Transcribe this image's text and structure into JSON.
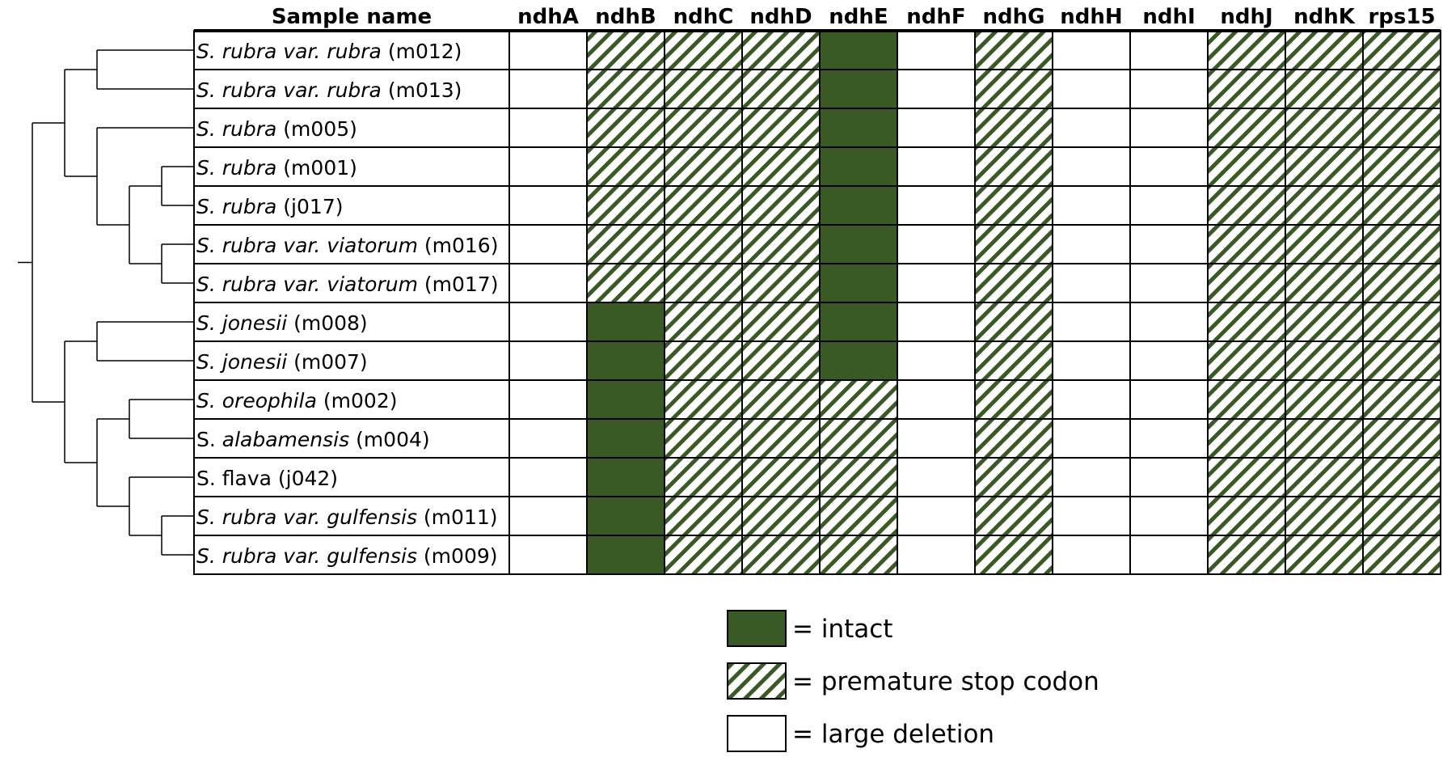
{
  "header": {
    "sample_col": "Sample name",
    "genes": [
      "ndhA",
      "ndhB",
      "ndhC",
      "ndhD",
      "ndhE",
      "ndhF",
      "ndhG",
      "ndhH",
      "ndhI",
      "ndhJ",
      "ndhK",
      "rps15"
    ]
  },
  "samples": [
    {
      "name": [
        {
          "t": "S. rubra var. rubra",
          "i": true
        },
        {
          "t": " (m012)",
          "i": false
        }
      ],
      "status": [
        "deletion",
        "stop",
        "stop",
        "stop",
        "intact",
        "deletion",
        "stop",
        "deletion",
        "deletion",
        "stop",
        "stop",
        "stop"
      ]
    },
    {
      "name": [
        {
          "t": "S. rubra var. rubra",
          "i": true
        },
        {
          "t": " (m013)",
          "i": false
        }
      ],
      "status": [
        "deletion",
        "stop",
        "stop",
        "stop",
        "intact",
        "deletion",
        "stop",
        "deletion",
        "deletion",
        "stop",
        "stop",
        "stop"
      ]
    },
    {
      "name": [
        {
          "t": "S. rubra",
          "i": true
        },
        {
          "t": " (m005)",
          "i": false
        }
      ],
      "status": [
        "deletion",
        "stop",
        "stop",
        "stop",
        "intact",
        "deletion",
        "stop",
        "deletion",
        "deletion",
        "stop",
        "stop",
        "stop"
      ]
    },
    {
      "name": [
        {
          "t": "S. rubra",
          "i": true
        },
        {
          "t": " (m001)",
          "i": false
        }
      ],
      "status": [
        "deletion",
        "stop",
        "stop",
        "stop",
        "intact",
        "deletion",
        "stop",
        "deletion",
        "deletion",
        "stop",
        "stop",
        "stop"
      ]
    },
    {
      "name": [
        {
          "t": "S. rubra",
          "i": true
        },
        {
          "t": " (j017)",
          "i": false
        }
      ],
      "status": [
        "deletion",
        "stop",
        "stop",
        "stop",
        "intact",
        "deletion",
        "stop",
        "deletion",
        "deletion",
        "stop",
        "stop",
        "stop"
      ]
    },
    {
      "name": [
        {
          "t": "S. rubra var. viatorum",
          "i": true
        },
        {
          "t": " (m016)",
          "i": false
        }
      ],
      "status": [
        "deletion",
        "stop",
        "stop",
        "stop",
        "intact",
        "deletion",
        "stop",
        "deletion",
        "deletion",
        "stop",
        "stop",
        "stop"
      ]
    },
    {
      "name": [
        {
          "t": "S. rubra var. viatorum",
          "i": true
        },
        {
          "t": " (m017)",
          "i": false
        }
      ],
      "status": [
        "deletion",
        "stop",
        "stop",
        "stop",
        "intact",
        "deletion",
        "stop",
        "deletion",
        "deletion",
        "stop",
        "stop",
        "stop"
      ]
    },
    {
      "name": [
        {
          "t": "S. jonesii",
          "i": true
        },
        {
          "t": " (m008)",
          "i": false
        }
      ],
      "status": [
        "deletion",
        "intact",
        "stop",
        "stop",
        "intact",
        "deletion",
        "stop",
        "deletion",
        "deletion",
        "stop",
        "stop",
        "stop"
      ]
    },
    {
      "name": [
        {
          "t": "S. jonesii",
          "i": true
        },
        {
          "t": " (m007)",
          "i": false
        }
      ],
      "status": [
        "deletion",
        "intact",
        "stop",
        "stop",
        "intact",
        "deletion",
        "stop",
        "deletion",
        "deletion",
        "stop",
        "stop",
        "stop"
      ]
    },
    {
      "name": [
        {
          "t": "S. oreophila",
          "i": true
        },
        {
          "t": " (m002)",
          "i": false
        }
      ],
      "status": [
        "deletion",
        "intact",
        "stop",
        "stop",
        "stop",
        "deletion",
        "stop",
        "deletion",
        "deletion",
        "stop",
        "stop",
        "stop"
      ]
    },
    {
      "name": [
        {
          "t": "S. ",
          "i": false
        },
        {
          "t": "alabamensis",
          "i": true
        },
        {
          "t": " (m004)",
          "i": false
        }
      ],
      "status": [
        "deletion",
        "intact",
        "stop",
        "stop",
        "stop",
        "deletion",
        "stop",
        "deletion",
        "deletion",
        "stop",
        "stop",
        "stop"
      ]
    },
    {
      "name": [
        {
          "t": "S. flava (j042)",
          "i": false
        }
      ],
      "status": [
        "deletion",
        "intact",
        "stop",
        "stop",
        "stop",
        "deletion",
        "stop",
        "deletion",
        "deletion",
        "stop",
        "stop",
        "stop"
      ]
    },
    {
      "name": [
        {
          "t": "S. rubra var. gulfensis",
          "i": true
        },
        {
          "t": " (m011)",
          "i": false
        }
      ],
      "status": [
        "deletion",
        "intact",
        "stop",
        "stop",
        "stop",
        "deletion",
        "stop",
        "deletion",
        "deletion",
        "stop",
        "stop",
        "stop"
      ]
    },
    {
      "name": [
        {
          "t": "S. rubra var. gulfensis",
          "i": true
        },
        {
          "t": " (m009)",
          "i": false
        }
      ],
      "status": [
        "deletion",
        "intact",
        "stop",
        "stop",
        "stop",
        "deletion",
        "stop",
        "deletion",
        "deletion",
        "stop",
        "stop",
        "stop"
      ]
    }
  ],
  "legend": [
    {
      "key": "intact",
      "label": "= intact"
    },
    {
      "key": "stop",
      "label": "= premature stop codon"
    },
    {
      "key": "deletion",
      "label": "= large deletion"
    }
  ],
  "colors": {
    "intact": "#3a5a25",
    "stripe": "#3a5a25",
    "deletion": "#ffffff",
    "line": "#000000"
  },
  "tree": {
    "topology": [
      [
        [
          0,
          1
        ],
        [
          2,
          [
            [
              3,
              4
            ],
            [
              5,
              6
            ]
          ]
        ]
      ],
      [
        [
          7,
          8
        ],
        [
          [
            9,
            10
          ],
          [
            11,
            [
              12,
              13
            ]
          ]
        ]
      ]
    ]
  }
}
